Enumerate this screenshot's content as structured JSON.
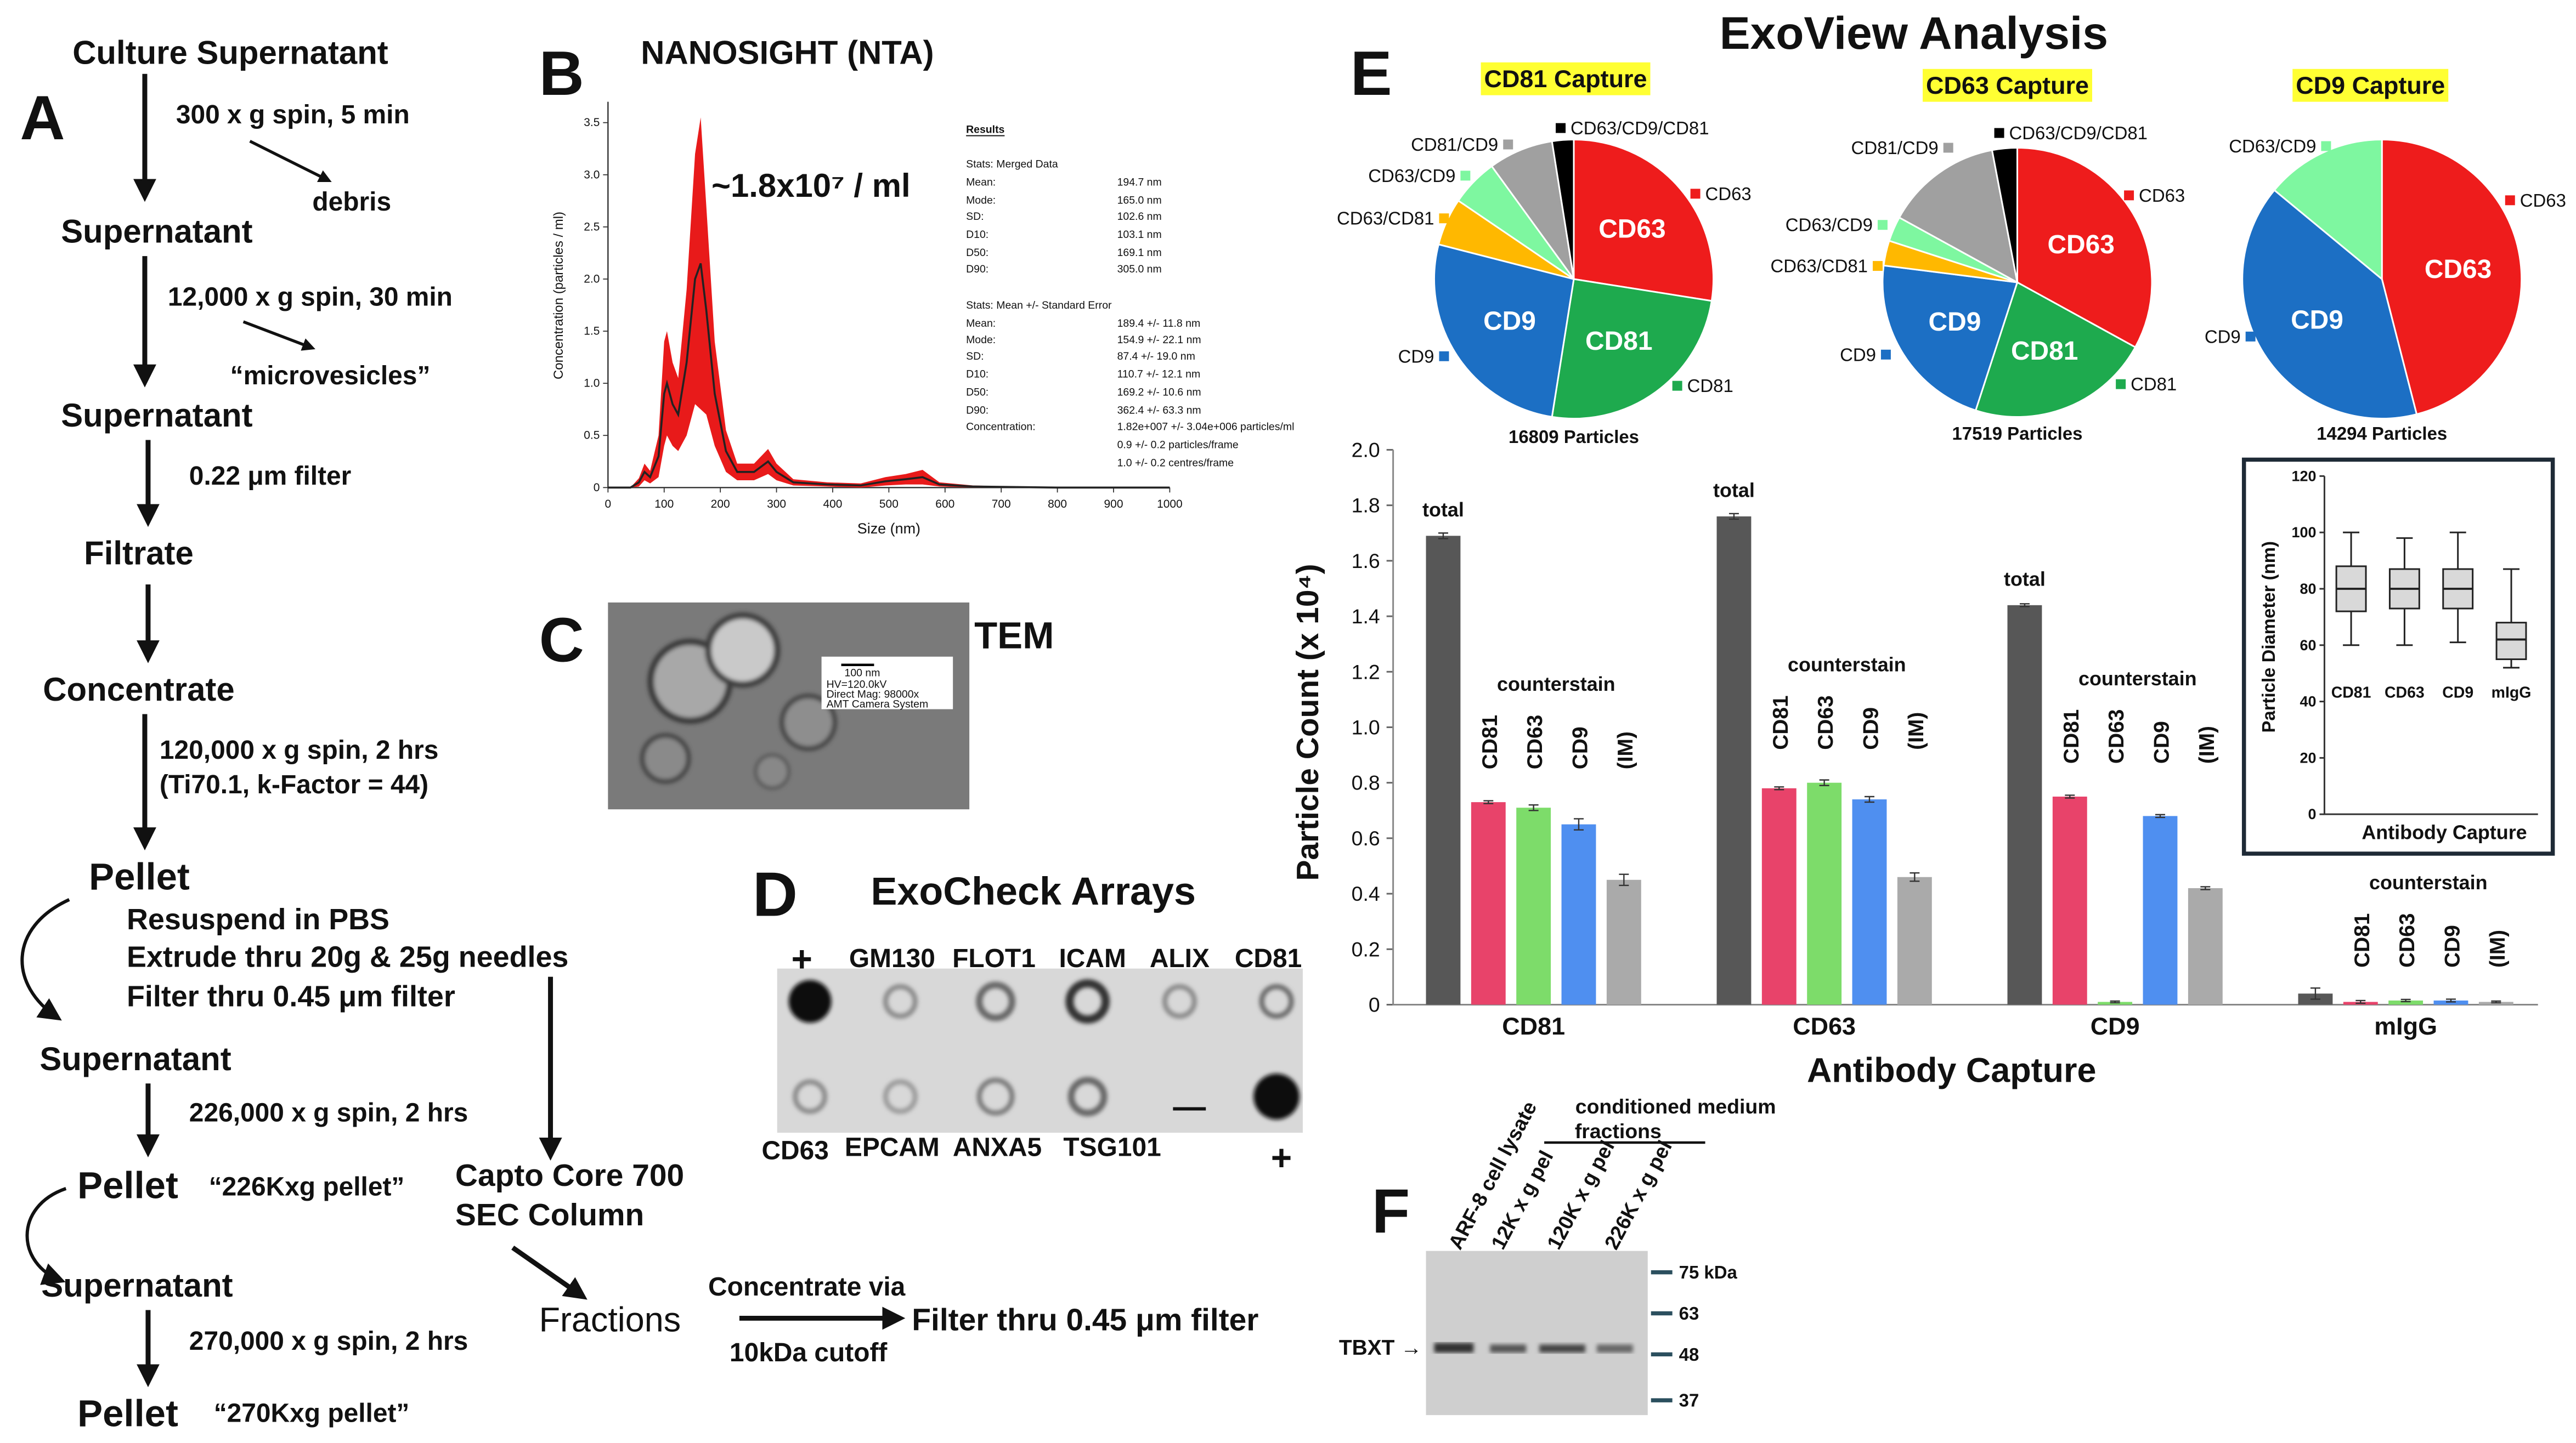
{
  "panel_a": {
    "label": "A",
    "items": [
      "Culture Supernatant",
      "300 x g spin, 5 min",
      "debris",
      "Supernatant",
      "12,000 x g spin, 30 min",
      "“microvesicles”",
      "Supernatant",
      "0.22 μm filter",
      "Filtrate",
      "Concentrate",
      "120,000 x g spin, 2 hrs",
      "(Ti70.1, k-Factor = 44)",
      "Pellet",
      "Resuspend in PBS",
      "Extrude thru 20g & 25g needles",
      "Filter thru 0.45 μm filter",
      "Supernatant",
      "226,000 x g spin, 2 hrs",
      "Pellet",
      "“226Kxg pellet”",
      "Supernatant",
      "270,000 x g spin, 2 hrs",
      "Pellet",
      "“270Kxg pellet”",
      "Capto Core 700",
      "SEC Column",
      "Fractions",
      "Concentrate via",
      "10kDa cutoff",
      "Filter thru 0.45 μm filter"
    ]
  },
  "panel_b": {
    "label": "B",
    "title": "NANOSIGHT (NTA)",
    "annotation": "~1.8x10⁷ / ml",
    "chart": {
      "type": "line",
      "xlabel": "Size (nm)",
      "ylabel": "Concentration (particles / ml)",
      "x": [
        0,
        40,
        55,
        65,
        75,
        90,
        100,
        105,
        115,
        125,
        140,
        155,
        165,
        175,
        190,
        210,
        230,
        260,
        285,
        300,
        330,
        390,
        450,
        494,
        530,
        560,
        590,
        650,
        800,
        1000
      ],
      "values": [
        0,
        0,
        0.05,
        0.15,
        0.1,
        0.3,
        0.9,
        1.0,
        0.8,
        0.7,
        1.2,
        2.0,
        2.15,
        1.7,
        0.9,
        0.35,
        0.15,
        0.15,
        0.25,
        0.15,
        0.05,
        0.03,
        0.02,
        0.06,
        0.08,
        0.1,
        0.03,
        0.01,
        0,
        0
      ],
      "errors": [
        0,
        0,
        0.04,
        0.08,
        0.06,
        0.2,
        0.5,
        0.5,
        0.4,
        0.35,
        0.7,
        1.2,
        1.4,
        1.0,
        0.5,
        0.2,
        0.08,
        0.08,
        0.12,
        0.08,
        0.03,
        0.02,
        0.02,
        0.04,
        0.05,
        0.07,
        0.02,
        0.01,
        0,
        0
      ],
      "color": "#e81a1a",
      "line_color": "#222",
      "xlim": [
        0,
        1000
      ],
      "xticks": [
        0,
        100,
        200,
        300,
        400,
        500,
        600,
        700,
        800,
        900,
        1000
      ],
      "ylim": [
        0,
        3.7
      ],
      "yticks": [
        0,
        0.5,
        {
          "value": 1,
          "label": "1.0"
        },
        1.5,
        {
          "value": 2,
          "label": "2.0"
        },
        2.5,
        {
          "value": 3,
          "label": "3.0"
        },
        3.5
      ]
    },
    "results": [
      [
        "Results"
      ],
      [
        "Stats: Merged Data"
      ],
      [
        "Mean:",
        "194.7 nm"
      ],
      [
        "Mode:",
        "165.0 nm"
      ],
      [
        "SD:",
        "102.6 nm"
      ],
      [
        "D10:",
        "103.1 nm"
      ],
      [
        "D50:",
        "169.1 nm"
      ],
      [
        "D90:",
        "305.0 nm"
      ],
      [
        "Stats: Mean +/- Standard Error"
      ],
      [
        "Mean:",
        "189.4 +/- 11.8 nm"
      ],
      [
        "Mode:",
        "154.9 +/- 22.1 nm"
      ],
      [
        "SD:",
        "87.4 +/- 19.0 nm"
      ],
      [
        "D10:",
        "110.7 +/- 12.1 nm"
      ],
      [
        "D50:",
        "169.2 +/- 10.6 nm"
      ],
      [
        "D90:",
        "362.4 +/- 63.3 nm"
      ],
      [
        "Concentration:",
        "1.82e+007 +/- 3.04e+006 particles/ml"
      ],
      [
        "0.9 +/- 0.2 particles/frame"
      ],
      [
        "1.0 +/- 0.2 centres/frame"
      ]
    ]
  },
  "panel_c": {
    "label": "C",
    "title": "TEM",
    "scale_info": [
      "100 nm",
      "HV=120.0kV",
      "Direct Mag: 98000x",
      "AMT Camera System"
    ]
  },
  "panel_d": {
    "label": "D",
    "title": "ExoCheck Arrays",
    "top": [
      "+",
      "GM130",
      "FLOT1",
      "ICAM",
      "ALIX",
      "CD81"
    ],
    "bottom": [
      "CD63",
      "EPCAM",
      "ANXA5",
      "TSG101",
      "—",
      "+"
    ]
  },
  "panel_e": {
    "label": "E",
    "title": "ExoView Analysis",
    "pies": [
      {
        "type": "pie",
        "title": "CD81 Capture",
        "particles": "16809 Particles",
        "labels": [
          "CD63",
          "CD81",
          "CD9",
          "CD63/CD81",
          "CD63/CD9",
          "CD81/CD9",
          "CD63/CD9/CD81"
        ],
        "values": [
          27.5,
          25,
          26.5,
          5.5,
          5.5,
          7.5,
          2.5
        ],
        "colors": [
          "#ee1c1c",
          "#1eaa4e",
          "#1c6fc4",
          "#ffb800",
          "#7ef7a0",
          "#a0a0a0",
          "#000000"
        ]
      },
      {
        "type": "pie",
        "title": "CD63 Capture",
        "particles": "17519 Particles",
        "labels": [
          "CD63",
          "CD81",
          "CD9",
          "CD63/CD81",
          "CD63/CD9",
          "CD81/CD9",
          "CD63/CD9/CD81"
        ],
        "values": [
          33,
          22,
          22,
          3,
          3,
          14,
          3
        ],
        "colors": [
          "#ee1c1c",
          "#1eaa4e",
          "#1c6fc4",
          "#ffb800",
          "#7ef7a0",
          "#a0a0a0",
          "#000000"
        ]
      },
      {
        "type": "pie",
        "title": "CD9 Capture",
        "particles": "14294 Particles",
        "labels": [
          "CD63",
          "CD9",
          "CD63/CD9"
        ],
        "values": [
          46,
          40,
          14
        ],
        "colors": [
          "#ee1c1c",
          "#1c6fc4",
          "#7ef7a0"
        ]
      }
    ],
    "bar": {
      "type": "bar",
      "ylabel": "Particle Count (x 10⁴)",
      "xlabel": "Antibody Capture",
      "counterstain": "counterstain",
      "categories": [
        "CD81",
        "CD63",
        "CD9",
        "mIgG"
      ],
      "annotated_total": [
        true,
        true,
        true,
        false
      ],
      "series": [
        {
          "name": "total",
          "color": "#575757",
          "values": [
            1.69,
            1.76,
            1.44,
            0.04
          ],
          "errors": [
            0.01,
            0.01,
            0.005,
            0.02
          ]
        },
        {
          "name": "CD81",
          "color": "#e8436a",
          "values": [
            0.73,
            0.78,
            0.75,
            0.01
          ],
          "errors": [
            0.005,
            0.005,
            0.005,
            0.005
          ]
        },
        {
          "name": "CD63",
          "color": "#7ddc6a",
          "values": [
            0.71,
            0.8,
            0.01,
            0.015
          ],
          "errors": [
            0.01,
            0.01,
            0.003,
            0.004
          ]
        },
        {
          "name": "CD9",
          "color": "#4f8ff0",
          "values": [
            0.65,
            0.74,
            0.68,
            0.015
          ],
          "errors": [
            0.02,
            0.01,
            0.005,
            0.005
          ]
        },
        {
          "name": "(IM)",
          "color": "#aaaaaa",
          "values": [
            0.45,
            0.46,
            0.42,
            0.01
          ],
          "errors": [
            0.02,
            0.015,
            0.005,
            0.003
          ]
        }
      ],
      "ylim": [
        0,
        2
      ],
      "yticks": [
        0,
        0.2,
        0.4,
        0.6,
        0.8,
        {
          "value": 1,
          "label": "1.0"
        },
        1.2,
        1.4,
        1.6,
        1.8,
        {
          "value": 2,
          "label": "2.0"
        }
      ]
    },
    "inset": {
      "type": "box",
      "ylabel": "Particle Diameter (nm)",
      "xlabel": "Antibody Capture",
      "categories": [
        "CD81",
        "CD63",
        "CD9",
        "mIgG"
      ],
      "boxes": [
        {
          "min": 60,
          "q1": 72,
          "median": 80,
          "q3": 88,
          "max": 100
        },
        {
          "min": 60,
          "q1": 73,
          "median": 80,
          "q3": 87,
          "max": 98
        },
        {
          "min": 61,
          "q1": 73,
          "median": 80,
          "q3": 87,
          "max": 100
        },
        {
          "min": 52,
          "q1": 55,
          "median": 62,
          "q3": 68,
          "max": 87
        }
      ],
      "color": "#d9d9d9",
      "ylim": [
        0,
        120
      ],
      "yticks": [
        0,
        20,
        40,
        60,
        80,
        100,
        120
      ]
    }
  },
  "panel_f": {
    "label": "F",
    "lanes": [
      "ARF-8 cell lysate",
      "12K x g pel",
      "120K x g pel",
      "226K x g pel"
    ],
    "group_label": [
      "conditioned medium",
      "fractions"
    ],
    "markers": [
      "75 kDa",
      "63",
      "48",
      "37"
    ],
    "target": "TBXT →"
  }
}
